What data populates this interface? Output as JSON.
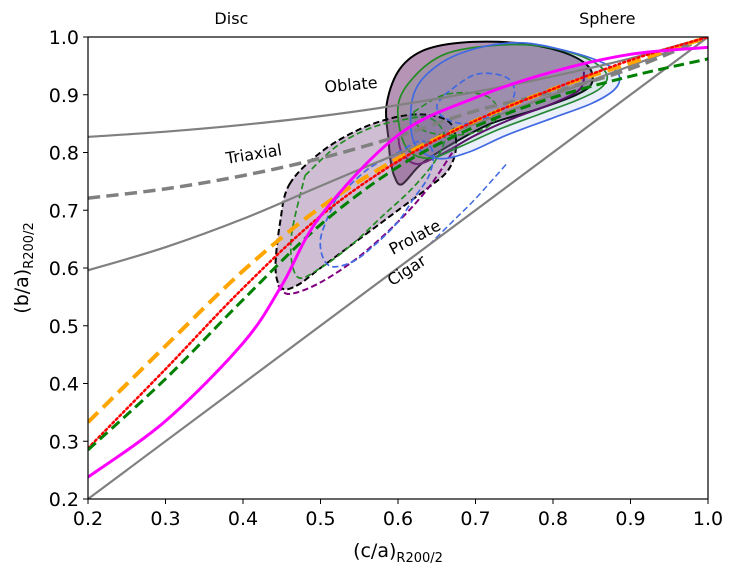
{
  "chart_data": {
    "type": "line",
    "title": "",
    "xlabel": "(c/a)",
    "xlabel_sub": "R200/2",
    "ylabel": "(b/a)",
    "ylabel_sub": "R200/2",
    "xlim": [
      0.2,
      1.0
    ],
    "ylim": [
      0.2,
      1.0
    ],
    "grid": false,
    "x_ticks": [
      0.2,
      0.3,
      0.4,
      0.5,
      0.6,
      0.7,
      0.8,
      0.9,
      1.0
    ],
    "x_tick_labels": [
      "0.2",
      "0.3",
      "0.4",
      "0.5",
      "0.6",
      "0.7",
      "0.8",
      "0.9",
      "1.0"
    ],
    "y_ticks": [
      0.2,
      0.3,
      0.4,
      0.5,
      0.6,
      0.7,
      0.8,
      0.9,
      1.0
    ],
    "y_tick_labels": [
      "0.2",
      "0.3",
      "0.4",
      "0.5",
      "0.6",
      "0.7",
      "0.8",
      "0.9",
      "1.0"
    ],
    "top_labels": [
      {
        "text": "Disc",
        "x": 0.385
      },
      {
        "text": "Sphere",
        "x": 0.87
      }
    ],
    "region_labels": [
      {
        "text": "Oblate",
        "x": 0.54,
        "y": 0.908,
        "angle": -5
      },
      {
        "text": "Triaxial",
        "x": 0.415,
        "y": 0.788,
        "angle": -9
      },
      {
        "text": "Prolate",
        "x": 0.625,
        "y": 0.645,
        "angle": -28
      },
      {
        "text": "Cigar",
        "x": 0.615,
        "y": 0.588,
        "angle": -33
      }
    ],
    "series": [
      {
        "name": "Oblate boundary",
        "style": "solid",
        "color": "#808080",
        "width": 2.2,
        "x": [
          0.2,
          0.3,
          0.4,
          0.5,
          0.6,
          0.7,
          0.8,
          0.9,
          1.0
        ],
        "y": [
          0.827,
          0.836,
          0.848,
          0.863,
          0.882,
          0.905,
          0.932,
          0.963,
          1.0
        ]
      },
      {
        "name": "Triaxial boundary",
        "style": "dashed",
        "color": "#808080",
        "width": 3.5,
        "x": [
          0.2,
          0.3,
          0.4,
          0.5,
          0.6,
          0.7,
          0.8,
          0.9,
          1.0
        ],
        "y": [
          0.721,
          0.737,
          0.76,
          0.79,
          0.828,
          0.872,
          0.905,
          0.945,
          1.0
        ]
      },
      {
        "name": "Prolate boundary",
        "style": "solid",
        "color": "#808080",
        "width": 2.2,
        "x": [
          0.2,
          0.3,
          0.4,
          0.5,
          0.6,
          0.7,
          0.8,
          0.9,
          1.0
        ],
        "y": [
          0.596,
          0.636,
          0.685,
          0.742,
          0.798,
          0.85,
          0.9,
          0.95,
          1.0
        ]
      },
      {
        "name": "Cigar boundary",
        "style": "solid",
        "color": "#808080",
        "width": 2.2,
        "x": [
          0.2,
          1.0
        ],
        "y": [
          0.2,
          1.0
        ]
      },
      {
        "name": "Orange dashed fit",
        "style": "dashed",
        "color": "#FFA500",
        "width": 4,
        "x": [
          0.2,
          0.3,
          0.4,
          0.5,
          0.6,
          0.7,
          0.8,
          0.9,
          1.0
        ],
        "y": [
          0.333,
          0.465,
          0.595,
          0.705,
          0.79,
          0.855,
          0.91,
          0.955,
          1.0
        ]
      },
      {
        "name": "Red dotted fit",
        "style": "dotted",
        "color": "#FF0000",
        "width": 2.5,
        "x": [
          0.2,
          0.3,
          0.4,
          0.5,
          0.6,
          0.7,
          0.8,
          0.9,
          1.0
        ],
        "y": [
          0.288,
          0.425,
          0.565,
          0.69,
          0.785,
          0.855,
          0.91,
          0.96,
          1.0
        ]
      },
      {
        "name": "Green dashed fit",
        "style": "dashed",
        "color": "#008000",
        "width": 3,
        "x": [
          0.2,
          0.3,
          0.4,
          0.5,
          0.6,
          0.7,
          0.8,
          0.9,
          1.0
        ],
        "y": [
          0.285,
          0.408,
          0.545,
          0.675,
          0.775,
          0.845,
          0.895,
          0.932,
          0.962
        ]
      },
      {
        "name": "Magenta fit",
        "style": "solid",
        "color": "#FF00FF",
        "width": 3,
        "x": [
          0.2,
          0.3,
          0.4,
          0.45,
          0.5,
          0.6,
          0.7,
          0.8,
          0.9,
          1.0
        ],
        "y": [
          0.238,
          0.335,
          0.47,
          0.57,
          0.69,
          0.83,
          0.895,
          0.94,
          0.97,
          0.982
        ]
      }
    ],
    "contours": [
      {
        "name": "Purple filled 1-sigma",
        "fill": "rgba(120,60,120,0.55)",
        "stroke": "#000000",
        "style": "solid",
        "width": 2,
        "x": [
          0.585,
          0.6,
          0.63,
          0.68,
          0.75,
          0.81,
          0.845,
          0.85,
          0.83,
          0.78,
          0.72,
          0.67,
          0.63,
          0.605,
          0.595,
          0.59,
          0.588,
          0.585
        ],
        "y": [
          0.88,
          0.94,
          0.975,
          0.99,
          0.99,
          0.975,
          0.95,
          0.92,
          0.9,
          0.875,
          0.85,
          0.815,
          0.78,
          0.745,
          0.76,
          0.79,
          0.82,
          0.88
        ]
      },
      {
        "name": "Purple inner edge",
        "fill": "none",
        "stroke": "#660066",
        "style": "solid",
        "width": 2,
        "x": [
          0.6,
          0.605,
          0.625,
          0.66,
          0.7,
          0.75,
          0.8,
          0.835,
          0.84
        ],
        "y": [
          0.83,
          0.8,
          0.78,
          0.8,
          0.83,
          0.86,
          0.885,
          0.91,
          0.94
        ]
      },
      {
        "name": "Purple filled 2-sigma",
        "fill": "rgba(140,100,150,0.42)",
        "stroke": "#000000",
        "style": "dashed",
        "width": 2,
        "x": [
          0.46,
          0.5,
          0.55,
          0.6,
          0.64,
          0.668,
          0.675,
          0.665,
          0.64,
          0.6,
          0.55,
          0.5,
          0.47,
          0.45,
          0.442,
          0.448,
          0.46
        ],
        "y": [
          0.745,
          0.8,
          0.84,
          0.862,
          0.865,
          0.85,
          0.81,
          0.77,
          0.74,
          0.7,
          0.65,
          0.6,
          0.57,
          0.565,
          0.6,
          0.68,
          0.745
        ]
      },
      {
        "name": "Purple 2-sigma edge",
        "fill": "none",
        "stroke": "#800080",
        "style": "dashed",
        "width": 2,
        "x": [
          0.445,
          0.46,
          0.5,
          0.55,
          0.6,
          0.64,
          0.67
        ],
        "y": [
          0.57,
          0.555,
          0.575,
          0.62,
          0.68,
          0.74,
          0.8
        ]
      },
      {
        "name": "Green 1-sigma",
        "fill": "rgba(0,128,0,0.08)",
        "stroke": "#228B22",
        "style": "solid",
        "width": 1.7,
        "x": [
          0.6,
          0.62,
          0.66,
          0.72,
          0.78,
          0.83,
          0.86,
          0.87,
          0.86,
          0.83,
          0.78,
          0.73,
          0.68,
          0.64,
          0.61,
          0.6
        ],
        "y": [
          0.88,
          0.93,
          0.97,
          0.985,
          0.985,
          0.97,
          0.95,
          0.93,
          0.91,
          0.89,
          0.865,
          0.84,
          0.81,
          0.79,
          0.81,
          0.88
        ]
      },
      {
        "name": "Green 2-sigma",
        "fill": "none",
        "stroke": "#228B22",
        "style": "dashed",
        "width": 1.7,
        "x": [
          0.48,
          0.52,
          0.56,
          0.6,
          0.64,
          0.66,
          0.65,
          0.62,
          0.58,
          0.54,
          0.5,
          0.47,
          0.462,
          0.48
        ],
        "y": [
          0.76,
          0.81,
          0.84,
          0.855,
          0.86,
          0.83,
          0.79,
          0.74,
          0.69,
          0.64,
          0.6,
          0.585,
          0.65,
          0.76
        ]
      },
      {
        "name": "Blue 1-sigma",
        "fill": "rgba(65,105,225,0.10)",
        "stroke": "#4169E1",
        "style": "solid",
        "width": 1.7,
        "x": [
          0.62,
          0.65,
          0.7,
          0.76,
          0.82,
          0.865,
          0.885,
          0.88,
          0.85,
          0.8,
          0.74,
          0.69,
          0.65,
          0.62,
          0.62
        ],
        "y": [
          0.9,
          0.95,
          0.98,
          0.99,
          0.975,
          0.955,
          0.935,
          0.91,
          0.885,
          0.86,
          0.83,
          0.8,
          0.79,
          0.82,
          0.9
        ]
      },
      {
        "name": "Blue inner",
        "fill": "none",
        "stroke": "#4169E1",
        "style": "dashed",
        "width": 1.7,
        "x": [
          0.66,
          0.7,
          0.74,
          0.75,
          0.73,
          0.69,
          0.66,
          0.65,
          0.66
        ],
        "y": [
          0.9,
          0.935,
          0.93,
          0.9,
          0.87,
          0.85,
          0.86,
          0.88,
          0.9
        ]
      },
      {
        "name": "Blue 2-sigma",
        "fill": "none",
        "stroke": "#4169E1",
        "style": "dashed",
        "width": 1.7,
        "x": [
          0.52,
          0.56,
          0.6,
          0.63,
          0.645,
          0.64,
          0.62,
          0.6,
          0.57,
          0.54,
          0.51,
          0.5,
          0.52
        ],
        "y": [
          0.72,
          0.77,
          0.8,
          0.82,
          0.8,
          0.76,
          0.72,
          0.68,
          0.64,
          0.61,
          0.605,
          0.65,
          0.72
        ]
      },
      {
        "name": "Blue outer 2-sigma",
        "fill": "none",
        "stroke": "#4169E1",
        "style": "dashed",
        "width": 1.5,
        "x": [
          0.64,
          0.67,
          0.7,
          0.74
        ],
        "y": [
          0.64,
          0.68,
          0.72,
          0.78
        ]
      },
      {
        "name": "Green center",
        "fill": "none",
        "stroke": "#228B22",
        "style": "dashed",
        "width": 1.5,
        "x": [
          0.62,
          0.66,
          0.71,
          0.73,
          0.71,
          0.67,
          0.63,
          0.62
        ],
        "y": [
          0.87,
          0.9,
          0.9,
          0.87,
          0.84,
          0.83,
          0.84,
          0.87
        ]
      }
    ]
  }
}
